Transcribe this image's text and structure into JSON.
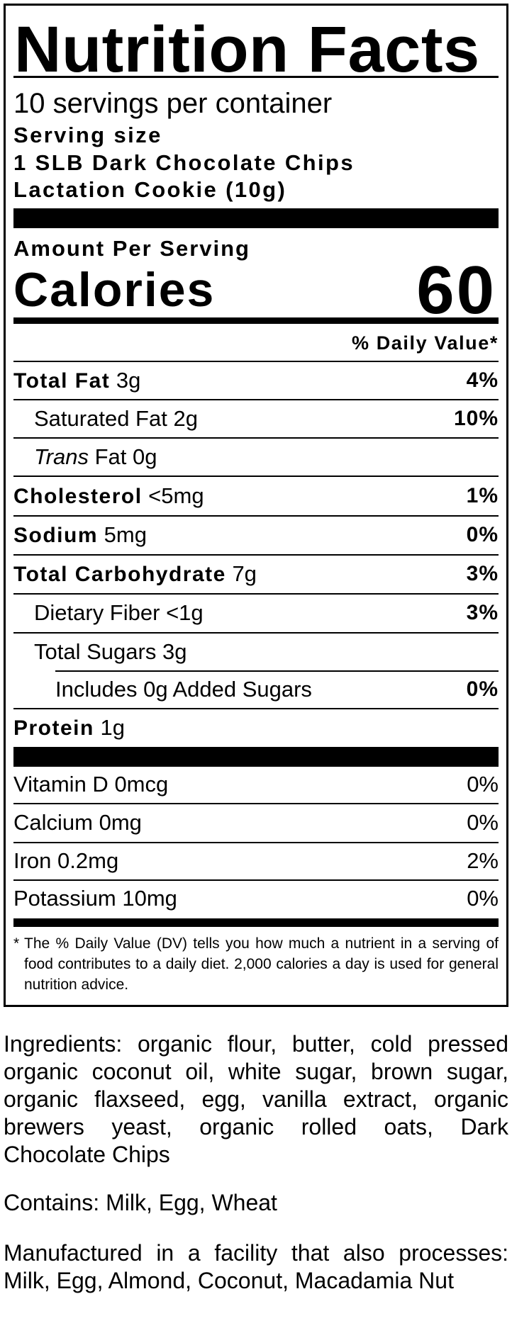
{
  "label": {
    "title": "Nutrition Facts",
    "servings_per_container": "10 servings per container",
    "serving_size_label": "Serving size",
    "serving_size_line1": "1 SLB Dark Chocolate Chips",
    "serving_size_line2": "Lactation Cookie (10g)",
    "amount_per_serving": "Amount Per Serving",
    "calories_label": "Calories",
    "calories_value": "60",
    "daily_value_header": "% Daily Value*",
    "nutrients": [
      {
        "name": "Total Fat",
        "amount": "3g",
        "dv": "4%"
      },
      {
        "name": "Saturated Fat",
        "amount": "2g",
        "dv": "10%"
      },
      {
        "name": "Trans",
        "name_suffix": "Fat",
        "amount": "0g",
        "dv": ""
      },
      {
        "name": "Cholesterol",
        "amount": "<5mg",
        "dv": "1%"
      },
      {
        "name": "Sodium",
        "amount": "5mg",
        "dv": "0%"
      },
      {
        "name": "Total Carbohydrate",
        "amount": "7g",
        "dv": "3%"
      },
      {
        "name": "Dietary Fiber",
        "amount": "<1g",
        "dv": "3%"
      },
      {
        "name": "Total Sugars",
        "amount": "3g",
        "dv": ""
      },
      {
        "name": "Includes 0g Added Sugars",
        "amount": "",
        "dv": "0%"
      },
      {
        "name": "Protein",
        "amount": "1g",
        "dv": ""
      }
    ],
    "vitamins": [
      {
        "name": "Vitamin D",
        "amount": "0mcg",
        "dv": "0%"
      },
      {
        "name": "Calcium",
        "amount": "0mg",
        "dv": "0%"
      },
      {
        "name": "Iron",
        "amount": "0.2mg",
        "dv": "2%"
      },
      {
        "name": "Potassium",
        "amount": "10mg",
        "dv": "0%"
      }
    ],
    "footnote_star": "*",
    "footnote": "The % Daily Value (DV) tells you how much a nutrient in a serving of food contributes to a daily diet. 2,000 calories a day is used for general nutrition advice."
  },
  "ingredients": "Ingredients: organic flour, butter, cold pressed organic coconut oil, white sugar, brown sugar, organic  flaxseed, egg, vanilla extract, organic brewers yeast, organic rolled oats, Dark Chocolate Chips",
  "contains": "Contains: Milk, Egg, Wheat",
  "facility": "Manufactured in a facility that also processes: Milk, Egg, Almond, Coconut, Macadamia Nut"
}
